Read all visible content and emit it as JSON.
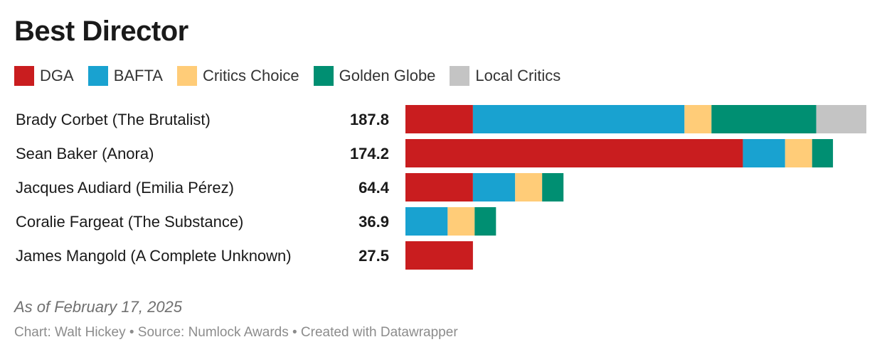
{
  "colors": {
    "DGA": "#c91d1f",
    "BAFTA": "#19a2d0",
    "Critics Choice": "#ffcc78",
    "Golden Globe": "#008f72",
    "Local Critics": "#c4c4c4"
  },
  "note": "As of February 17, 2025",
  "source": "Chart: Walt Hickey • Source: Numlock Awards • Created with Datawrapper",
  "chart_data": {
    "type": "bar",
    "orientation": "horizontal",
    "stacked": true,
    "title": "Best Director",
    "legend_position": "top-left",
    "grid": false,
    "xlim": [
      0,
      187.8
    ],
    "categories": [
      "Brady Corbet (The Brutalist)",
      "Sean Baker (Anora)",
      "Jacques Audiard (Emilia Pérez)",
      "Coralie Fargeat (The Substance)",
      "James Mangold (A Complete Unknown)"
    ],
    "totals": [
      "187.8",
      "174.2",
      "64.4",
      "36.9",
      "27.5"
    ],
    "series": [
      {
        "name": "DGA",
        "values": [
          27.5,
          137.5,
          27.5,
          0,
          27.5
        ]
      },
      {
        "name": "BAFTA",
        "values": [
          86.2,
          17.2,
          17.2,
          17.2,
          0
        ]
      },
      {
        "name": "Critics Choice",
        "values": [
          11.0,
          11.0,
          11.0,
          11.0,
          0
        ]
      },
      {
        "name": "Golden Globe",
        "values": [
          42.7,
          8.5,
          8.7,
          8.7,
          0
        ]
      },
      {
        "name": "Local Critics",
        "values": [
          20.4,
          0,
          0,
          0,
          0
        ]
      }
    ]
  }
}
